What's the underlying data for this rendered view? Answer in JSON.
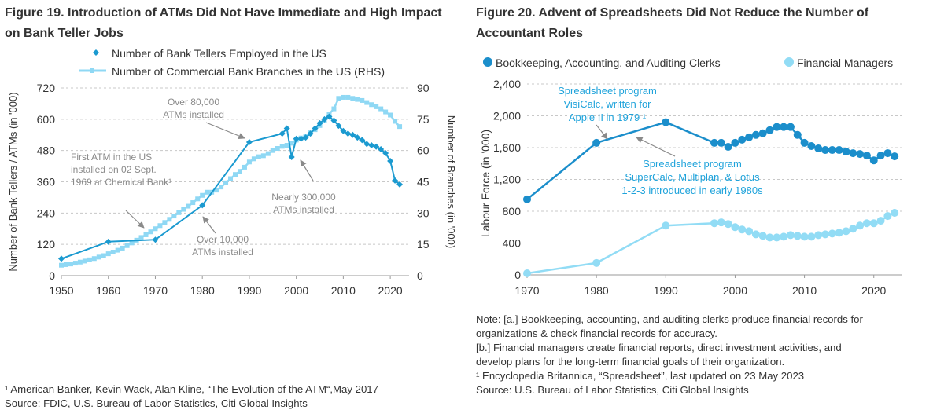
{
  "figures": {
    "fig19": {
      "title": "Figure 19. Introduction of ATMs Did Not Have Immediate and High Impact on Bank Teller Jobs",
      "footnote": "¹ American Banker, Kevin Wack, Alan Kline, “The Evolution of the ATM“,May 2017",
      "source": "Source: FDIC, U.S. Bureau of Labor Statistics, Citi Global Insights"
    },
    "fig20": {
      "title": "Figure 20. Advent of Spreadsheets Did Not Reduce the Number of Accountant Roles",
      "notes": [
        "Note: [a.] Bookkeeping, accounting, and auditing clerks produce financial records for",
        "organizations & check financial records for accuracy.",
        "[b.] Financial managers create financial reports, direct investment activities, and",
        "develop plans for the long-term financial goals of their organization.",
        "¹ Encyclopedia Britannica, “Spreadsheet”, last updated on 23 May 2023",
        "Source: U.S. Bureau of Labor Statistics, Citi Global Insights"
      ]
    }
  },
  "colors": {
    "tellers": "#1b9ad0",
    "branches": "#8fd8f4",
    "clerks": "#1b8ecb",
    "managers": "#92dcf5",
    "annotation_text_19": "#8a8a8a",
    "annotation_text_20": "#1fa3db",
    "arrow": "#8a8a8a"
  },
  "chart_data": [
    {
      "type": "line",
      "legend": [
        "Number of Bank Tellers Employed in the US",
        "Number of Commercial Bank Branches in the US (RHS)"
      ],
      "legend_placement": "top",
      "ylabel": "Number of Bank Tellers / ATMs (in '000)",
      "y2label": "Number of Branches (in '000)",
      "xlim": [
        1950,
        2024
      ],
      "ylim": [
        0,
        720
      ],
      "y2lim": [
        0,
        90
      ],
      "x_ticks": [
        1950,
        1960,
        1970,
        1980,
        1990,
        2000,
        2010,
        2020
      ],
      "y_ticks": [
        0,
        120,
        240,
        360,
        480,
        600,
        720
      ],
      "y2_ticks": [
        0,
        15,
        30,
        45,
        60,
        75,
        90
      ],
      "grid": "horizontal dashed",
      "series": [
        {
          "name": "Number of Bank Tellers Employed in the US",
          "axis": "left",
          "x": [
            1950,
            1960,
            1970,
            1980,
            1990,
            1997,
            1998,
            1999,
            2000,
            2001,
            2002,
            2003,
            2004,
            2005,
            2006,
            2007,
            2008,
            2009,
            2010,
            2011,
            2012,
            2013,
            2014,
            2015,
            2016,
            2017,
            2018,
            2019,
            2020,
            2021,
            2022
          ],
          "y": [
            65,
            130,
            138,
            270,
            512,
            545,
            565,
            455,
            525,
            525,
            530,
            545,
            565,
            585,
            600,
            610,
            595,
            575,
            555,
            545,
            540,
            530,
            520,
            505,
            500,
            495,
            485,
            470,
            440,
            365,
            350
          ]
        },
        {
          "name": "Number of Commercial Bank Branches in the US (RHS)",
          "axis": "right",
          "x": [
            1950,
            1951,
            1952,
            1953,
            1954,
            1955,
            1956,
            1957,
            1958,
            1959,
            1960,
            1961,
            1962,
            1963,
            1964,
            1965,
            1966,
            1967,
            1968,
            1969,
            1970,
            1971,
            1972,
            1973,
            1974,
            1975,
            1976,
            1977,
            1978,
            1979,
            1980,
            1981,
            1982,
            1983,
            1984,
            1985,
            1986,
            1987,
            1988,
            1989,
            1990,
            1991,
            1992,
            1993,
            1994,
            1995,
            1996,
            1997,
            1998,
            1999,
            2000,
            2001,
            2002,
            2003,
            2004,
            2005,
            2006,
            2007,
            2008,
            2009,
            2010,
            2011,
            2012,
            2013,
            2014,
            2015,
            2016,
            2017,
            2018,
            2019,
            2020,
            2021,
            2022
          ],
          "y": [
            5,
            5.3,
            5.6,
            6,
            6.5,
            7,
            7.6,
            8.2,
            8.9,
            9.6,
            10.5,
            11.3,
            12.2,
            13.2,
            14.4,
            15.7,
            17,
            18.3,
            19.6,
            21,
            22.5,
            24,
            25.5,
            27,
            28.6,
            30.2,
            31.8,
            33.3,
            35,
            36.8,
            38.5,
            40,
            40,
            41,
            42.5,
            44.5,
            46.5,
            48.5,
            50,
            52,
            54.5,
            56,
            57,
            57.5,
            58.5,
            60,
            61,
            62,
            62.5,
            63.5,
            65,
            66,
            67,
            68.5,
            70,
            72,
            74.5,
            77.5,
            80,
            85,
            85.5,
            85.5,
            85,
            84.5,
            84,
            83,
            82,
            81,
            80,
            78.5,
            77,
            74,
            71.5
          ]
        }
      ],
      "annotations": [
        {
          "lines": [
            "Over 80,000",
            "ATMs installed"
          ],
          "year": 1990
        },
        {
          "lines": [
            "First ATM in the US",
            "installed on 02 Sept.",
            "1969 at Chemical Bank¹"
          ],
          "year": 1969
        },
        {
          "lines": [
            "Nearly 300,000",
            "ATMs installed"
          ],
          "year": 2000
        },
        {
          "lines": [
            "Over 10,000",
            "ATMs installed"
          ],
          "year": 1980
        }
      ]
    },
    {
      "type": "line",
      "legend": [
        "Bookkeeping, Accounting, and Auditing Clerks",
        "Financial Managers"
      ],
      "legend_placement": "top",
      "ylabel": "Labour Force  (in '000)",
      "xlim": [
        1970,
        2024
      ],
      "ylim": [
        0,
        2400
      ],
      "x_ticks": [
        1970,
        1980,
        1990,
        2000,
        2010,
        2020
      ],
      "y_ticks": [
        "0",
        "400",
        "800",
        "1,200",
        "1,600",
        "2,000",
        "2,400"
      ],
      "y_tick_values": [
        0,
        400,
        800,
        1200,
        1600,
        2000,
        2400
      ],
      "grid": "horizontal dashed",
      "series": [
        {
          "name": "Bookkeeping, Accounting, and Auditing Clerks",
          "x": [
            1970,
            1980,
            1990,
            1997,
            1998,
            1999,
            2000,
            2001,
            2002,
            2003,
            2004,
            2005,
            2006,
            2007,
            2008,
            2009,
            2010,
            2011,
            2012,
            2013,
            2014,
            2015,
            2016,
            2017,
            2018,
            2019,
            2020,
            2021,
            2022,
            2023
          ],
          "y": [
            950,
            1660,
            1920,
            1660,
            1660,
            1610,
            1660,
            1700,
            1730,
            1760,
            1780,
            1820,
            1860,
            1860,
            1860,
            1760,
            1660,
            1620,
            1590,
            1570,
            1570,
            1570,
            1550,
            1530,
            1520,
            1500,
            1440,
            1500,
            1530,
            1490
          ]
        },
        {
          "name": "Financial Managers",
          "x": [
            1970,
            1980,
            1990,
            1997,
            1998,
            1999,
            2000,
            2001,
            2002,
            2003,
            2004,
            2005,
            2006,
            2007,
            2008,
            2009,
            2010,
            2011,
            2012,
            2013,
            2014,
            2015,
            2016,
            2017,
            2018,
            2019,
            2020,
            2021,
            2022,
            2023
          ],
          "y": [
            20,
            150,
            620,
            650,
            660,
            640,
            600,
            570,
            550,
            510,
            490,
            470,
            470,
            480,
            500,
            490,
            480,
            480,
            500,
            510,
            520,
            530,
            550,
            580,
            620,
            650,
            650,
            680,
            740,
            780
          ]
        }
      ],
      "annotations": [
        {
          "lines": [
            "Spreadsheet program",
            "VisiCalc, written for",
            "Apple II in 1979 ¹"
          ],
          "year": 1980
        },
        {
          "lines": [
            "Spreadsheet program",
            "SuperCalc, Multiplan, & Lotus",
            "1-2-3 introduced in early 1980s"
          ],
          "year": 1983
        }
      ]
    }
  ]
}
